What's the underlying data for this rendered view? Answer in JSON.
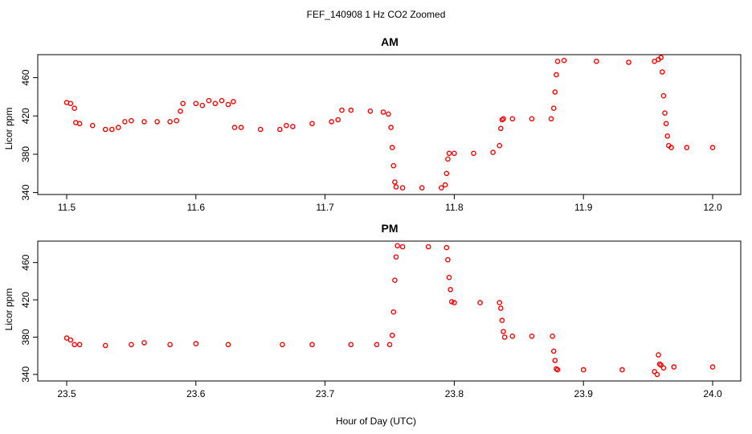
{
  "figure_title": "FEF_140908 1 Hz CO2 Zoomed",
  "xlabel": "Hour of Day (UTC)",
  "colors": {
    "points": "#ff0000",
    "axes": "#000000",
    "background": "#ffffff"
  },
  "chart_data": [
    {
      "type": "scatter",
      "title": "AM",
      "xlabel": "Hour of Day (UTC)",
      "ylabel": "Licor ppm",
      "xlim": [
        11.5,
        12.0
      ],
      "ylim": [
        338,
        484
      ],
      "xticks": [
        "11.5",
        "11.6",
        "11.7",
        "11.8",
        "11.9",
        "12.0"
      ],
      "yticks": [
        "340",
        "380",
        "420",
        "460"
      ],
      "marker": "open-circle",
      "grid": false,
      "legend": "none",
      "series": [
        {
          "color": "#ff0000",
          "x": [
            11.5,
            11.503,
            11.506,
            11.507,
            11.51,
            11.52,
            11.53,
            11.535,
            11.54,
            11.545,
            11.55,
            11.56,
            11.57,
            11.58,
            11.585,
            11.588,
            11.59,
            11.6,
            11.605,
            11.61,
            11.615,
            11.62,
            11.625,
            11.629,
            11.63,
            11.635,
            11.65,
            11.665,
            11.67,
            11.675,
            11.69,
            11.705,
            11.71,
            11.713,
            11.72,
            11.735,
            11.745,
            11.749,
            11.751,
            11.752,
            11.753,
            11.754,
            11.755,
            11.76,
            11.775,
            11.79,
            11.793,
            11.794,
            11.795,
            11.796,
            11.8,
            11.815,
            11.83,
            11.835,
            11.836,
            11.837,
            11.838,
            11.845,
            11.86,
            11.875,
            11.877,
            11.878,
            11.879,
            11.88,
            11.885,
            11.91,
            11.935,
            11.955,
            11.958,
            11.96,
            11.961,
            11.962,
            11.963,
            11.964,
            11.965,
            11.966,
            11.968,
            11.98,
            12.0
          ],
          "y": [
            434,
            433,
            428,
            413,
            412,
            410,
            406,
            406,
            408,
            414,
            415,
            414,
            414,
            414,
            415,
            425,
            433,
            433,
            431,
            436,
            433,
            436,
            432,
            435,
            408,
            408,
            406,
            406,
            410,
            409,
            412,
            414,
            416,
            426,
            426,
            425,
            424,
            422,
            408,
            387,
            368,
            351,
            346,
            345,
            345,
            345,
            348,
            360,
            375,
            381,
            381,
            381,
            382,
            389,
            407,
            416,
            417,
            417,
            417,
            417,
            428,
            445,
            463,
            477,
            478,
            477,
            476,
            477,
            479,
            481,
            466,
            441,
            423,
            412,
            399,
            389,
            387,
            387,
            387
          ]
        }
      ]
    },
    {
      "type": "scatter",
      "title": "PM",
      "xlabel": "Hour of Day (UTC)",
      "ylabel": "Licor ppm",
      "xlim": [
        23.5,
        24.0
      ],
      "ylim": [
        333,
        483
      ],
      "xticks": [
        "23.5",
        "23.6",
        "23.7",
        "23.8",
        "23.9",
        "24.0"
      ],
      "yticks": [
        "340",
        "380",
        "420",
        "460"
      ],
      "marker": "open-circle",
      "grid": false,
      "legend": "none",
      "series": [
        {
          "color": "#ff0000",
          "x": [
            23.5,
            23.503,
            23.506,
            23.51,
            23.53,
            23.55,
            23.56,
            23.58,
            23.6,
            23.625,
            23.667,
            23.69,
            23.72,
            23.74,
            23.75,
            23.752,
            23.753,
            23.754,
            23.755,
            23.756,
            23.76,
            23.78,
            23.794,
            23.795,
            23.796,
            23.797,
            23.798,
            23.8,
            23.82,
            23.835,
            23.836,
            23.837,
            23.838,
            23.839,
            23.845,
            23.86,
            23.876,
            23.877,
            23.878,
            23.879,
            23.88,
            23.9,
            23.93,
            23.955,
            23.957,
            23.958,
            23.959,
            23.96,
            23.962,
            23.97,
            24.0
          ],
          "y": [
            379,
            377,
            372,
            372,
            371,
            372,
            374,
            372,
            373,
            372,
            372,
            372,
            372,
            372,
            372,
            382,
            407,
            441,
            466,
            478,
            477,
            477,
            476,
            463,
            444,
            431,
            418,
            417,
            417,
            417,
            411,
            398,
            386,
            380,
            381,
            381,
            381,
            365,
            355,
            346,
            345,
            345,
            345,
            343,
            340,
            361,
            351,
            350,
            347,
            348,
            348
          ]
        }
      ]
    }
  ]
}
